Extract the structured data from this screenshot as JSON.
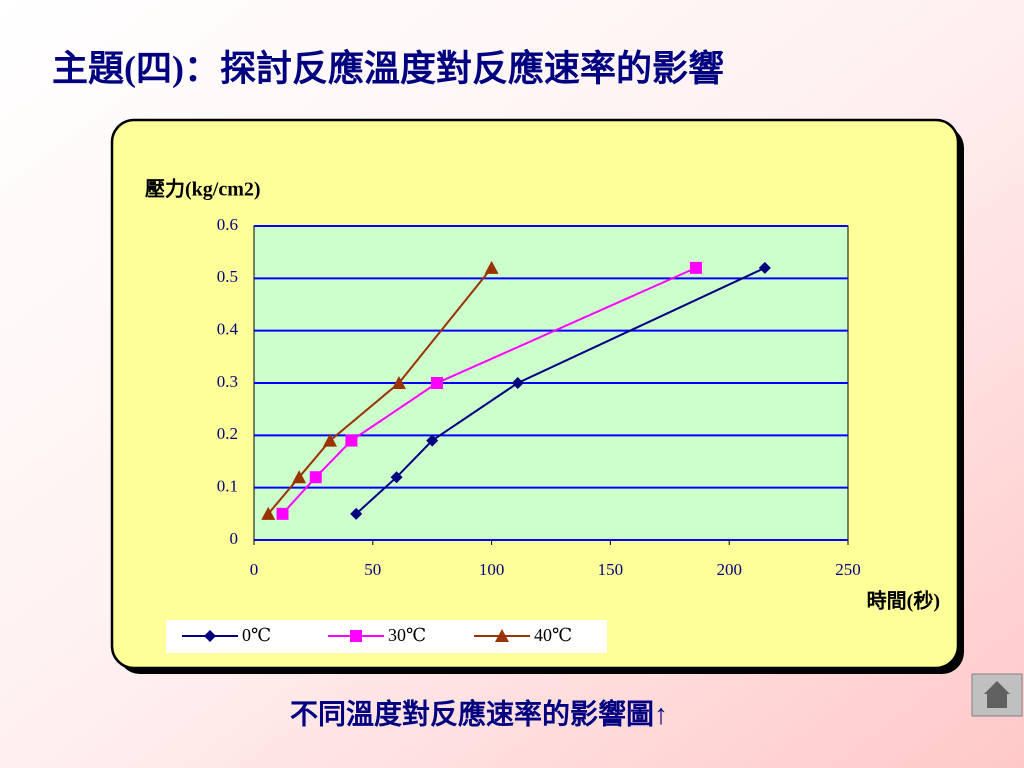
{
  "slide": {
    "title": "主題(四)：探討反應溫度對反應速率的影響",
    "caption": "不同溫度對反應速率的影響圖↑"
  },
  "chart_data": {
    "type": "line",
    "y_label": "壓力(kg/cm2)",
    "x_label": "時間(秒)",
    "xlim": [
      0,
      250
    ],
    "xticks": [
      0,
      50,
      100,
      150,
      200,
      250
    ],
    "ylim": [
      0,
      0.6
    ],
    "yticks": [
      0,
      0.1,
      0.2,
      0.3,
      0.4,
      0.5,
      0.6
    ],
    "grid": true,
    "legend": "bottom",
    "series": [
      {
        "name": "0℃",
        "color": "#000080",
        "marker": "diamond",
        "x": [
          43,
          60,
          75,
          111,
          215
        ],
        "values": [
          0.05,
          0.12,
          0.19,
          0.3,
          0.52
        ]
      },
      {
        "name": "30℃",
        "color": "#ff00ff",
        "marker": "square",
        "x": [
          12,
          26,
          41,
          77,
          186
        ],
        "values": [
          0.05,
          0.12,
          0.19,
          0.3,
          0.52
        ]
      },
      {
        "name": "40℃",
        "color": "#993300",
        "marker": "triangle",
        "x": [
          6,
          19,
          32,
          61,
          100
        ],
        "values": [
          0.05,
          0.12,
          0.19,
          0.3,
          0.52
        ]
      }
    ]
  }
}
